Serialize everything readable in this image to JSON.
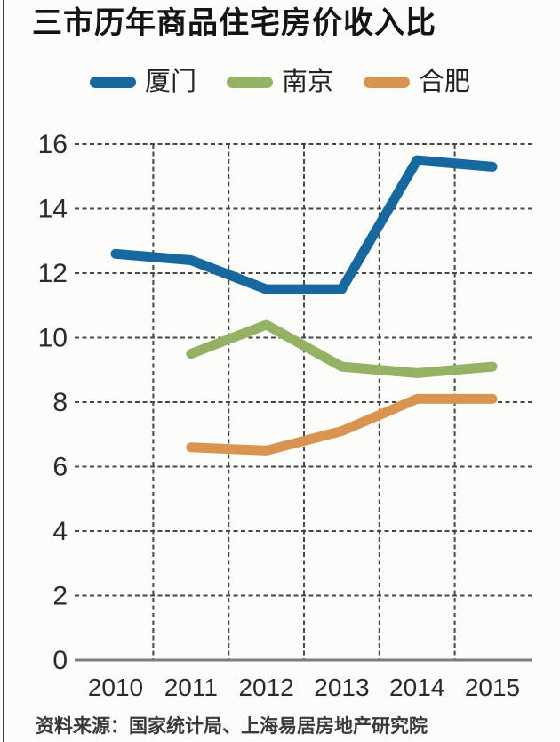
{
  "title": "三市历年商品住宅房价收入比",
  "source": "资料来源：国家统计局、上海易居房地产研究院",
  "colors": {
    "background": "#fcfcfa",
    "left_rule": "#3f3f3f",
    "gridline": "#474747",
    "axis_line": "#7d7d7d",
    "tick_text": "#2a2a2a",
    "title_text": "#141414",
    "xiamen_blue": "#16689e",
    "nanjing_green": "#94b164",
    "hefei_orange": "#d9954f"
  },
  "chart_data": {
    "type": "line",
    "title": "三市历年商品住宅房价收入比",
    "xlabel": "",
    "ylabel": "",
    "categories": [
      "2010",
      "2011",
      "2012",
      "2013",
      "2014",
      "2015"
    ],
    "series": [
      {
        "name": "厦门",
        "color": "#16689e",
        "values": [
          12.6,
          12.4,
          11.5,
          11.5,
          15.5,
          15.3
        ]
      },
      {
        "name": "南京",
        "color": "#94b164",
        "values": [
          null,
          9.5,
          10.4,
          9.1,
          8.9,
          9.1
        ]
      },
      {
        "name": "合肥",
        "color": "#d9954f",
        "values": [
          null,
          6.6,
          6.5,
          7.1,
          8.1,
          8.1
        ]
      }
    ],
    "ylim": [
      0,
      16
    ],
    "y_ticks": [
      16,
      14,
      12,
      10,
      8,
      6,
      4,
      2,
      0
    ],
    "grid": true,
    "grid_style": "dashed",
    "legend_position": "top"
  }
}
